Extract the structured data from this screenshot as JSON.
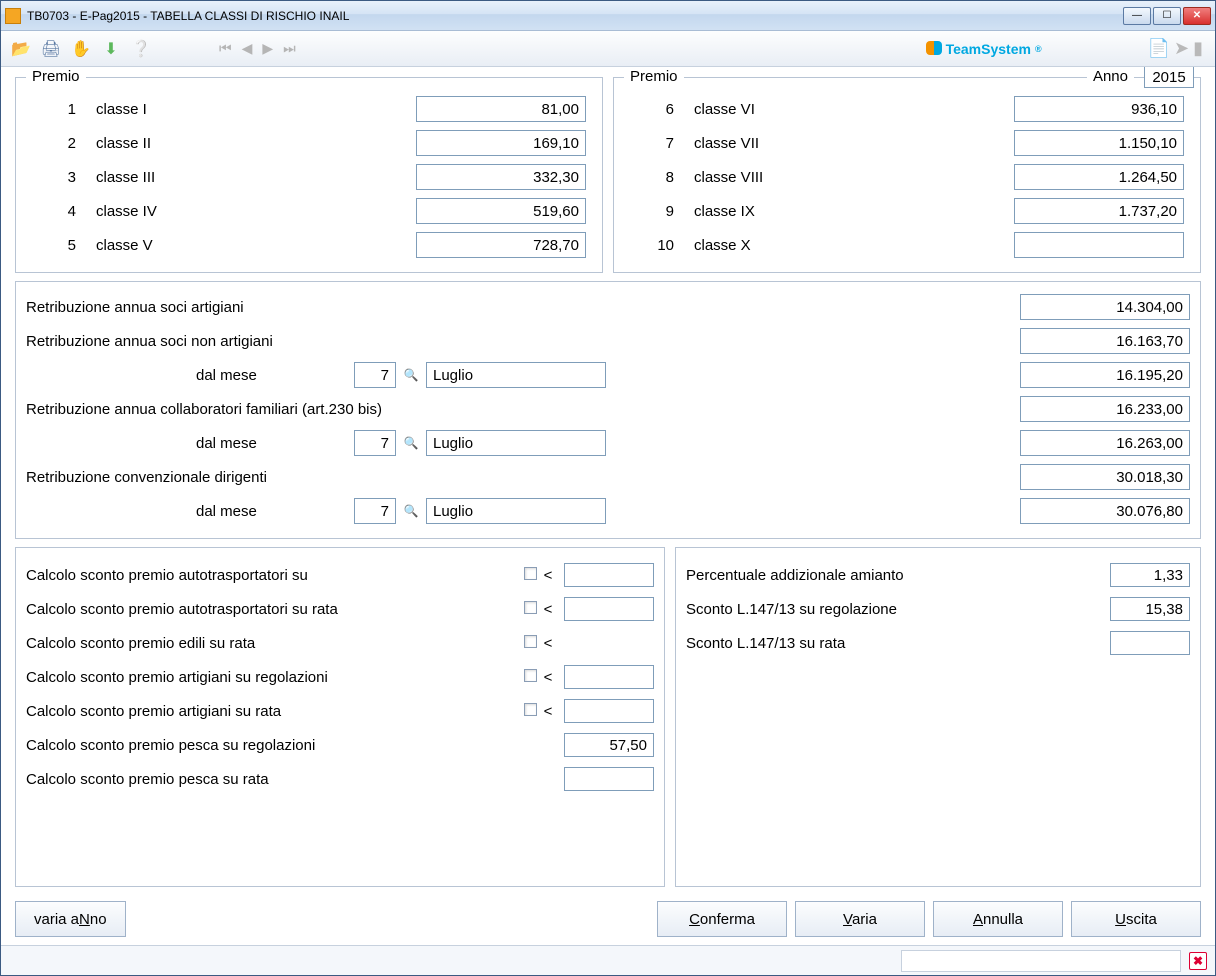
{
  "window": {
    "title": "TB0703  -  E-Pag2015  -  TABELLA CLASSI DI RISCHIO INAIL"
  },
  "brand": "TeamSystem",
  "premio": {
    "legend": "Premio",
    "anno_label": "Anno",
    "anno_value": "2015",
    "left": [
      {
        "n": "1",
        "label": "classe I",
        "value": "81,00"
      },
      {
        "n": "2",
        "label": "classe II",
        "value": "169,10"
      },
      {
        "n": "3",
        "label": "classe III",
        "value": "332,30"
      },
      {
        "n": "4",
        "label": "classe IV",
        "value": "519,60"
      },
      {
        "n": "5",
        "label": "classe V",
        "value": "728,70"
      }
    ],
    "right": [
      {
        "n": "6",
        "label": "classe VI",
        "value": "936,10"
      },
      {
        "n": "7",
        "label": "classe VII",
        "value": "1.150,10"
      },
      {
        "n": "8",
        "label": "classe VIII",
        "value": "1.264,50"
      },
      {
        "n": "9",
        "label": "classe IX",
        "value": "1.737,20"
      },
      {
        "n": "10",
        "label": "classe X",
        "value": ""
      }
    ]
  },
  "retrib": {
    "r1": {
      "label": "Retribuzione annua soci artigiani",
      "value": "14.304,00"
    },
    "r2": {
      "label": "Retribuzione annua soci non artigiani",
      "value": "16.163,70"
    },
    "r2b": {
      "dal_mese": "dal mese",
      "mnum": "7",
      "mname": "Luglio",
      "value": "16.195,20"
    },
    "r3": {
      "label": "Retribuzione annua collaboratori familiari (art.230 bis)",
      "value": "16.233,00"
    },
    "r3b": {
      "dal_mese": "dal mese",
      "mnum": "7",
      "mname": "Luglio",
      "value": "16.263,00"
    },
    "r4": {
      "label": "Retribuzione convenzionale dirigenti",
      "value": "30.018,30"
    },
    "r4b": {
      "dal_mese": "dal mese",
      "mnum": "7",
      "mname": "Luglio",
      "value": "30.076,80"
    }
  },
  "calcolo": {
    "rows": [
      {
        "label": "Calcolo sconto premio autotrasportatori su",
        "chk": true,
        "lt": true,
        "value": ""
      },
      {
        "label": "Calcolo sconto premio autotrasportatori su rata",
        "chk": true,
        "lt": true,
        "value": ""
      },
      {
        "label": "Calcolo sconto premio edili su rata",
        "chk": true,
        "lt": true,
        "value": "",
        "noval": true
      },
      {
        "label": "Calcolo sconto premio artigiani su regolazioni",
        "chk": true,
        "lt": true,
        "value": ""
      },
      {
        "label": "Calcolo sconto premio artigiani su rata",
        "chk": true,
        "lt": true,
        "value": ""
      },
      {
        "label": "Calcolo sconto premio pesca su regolazioni",
        "chk": false,
        "lt": false,
        "value": "57,50"
      },
      {
        "label": "Calcolo sconto premio pesca su rata",
        "chk": false,
        "lt": false,
        "value": ""
      }
    ]
  },
  "destra": {
    "rows": [
      {
        "label": "Percentuale addizionale amianto",
        "value": "1,33"
      },
      {
        "label": "Sconto L.147/13 su regolazione",
        "value": "15,38"
      },
      {
        "label": "Sconto L.147/13 su rata",
        "value": ""
      }
    ]
  },
  "buttons": {
    "varia_anno": "varia aNno",
    "conferma": "Conferma",
    "varia": "Varia",
    "annulla": "Annulla",
    "uscita": "Uscita"
  }
}
